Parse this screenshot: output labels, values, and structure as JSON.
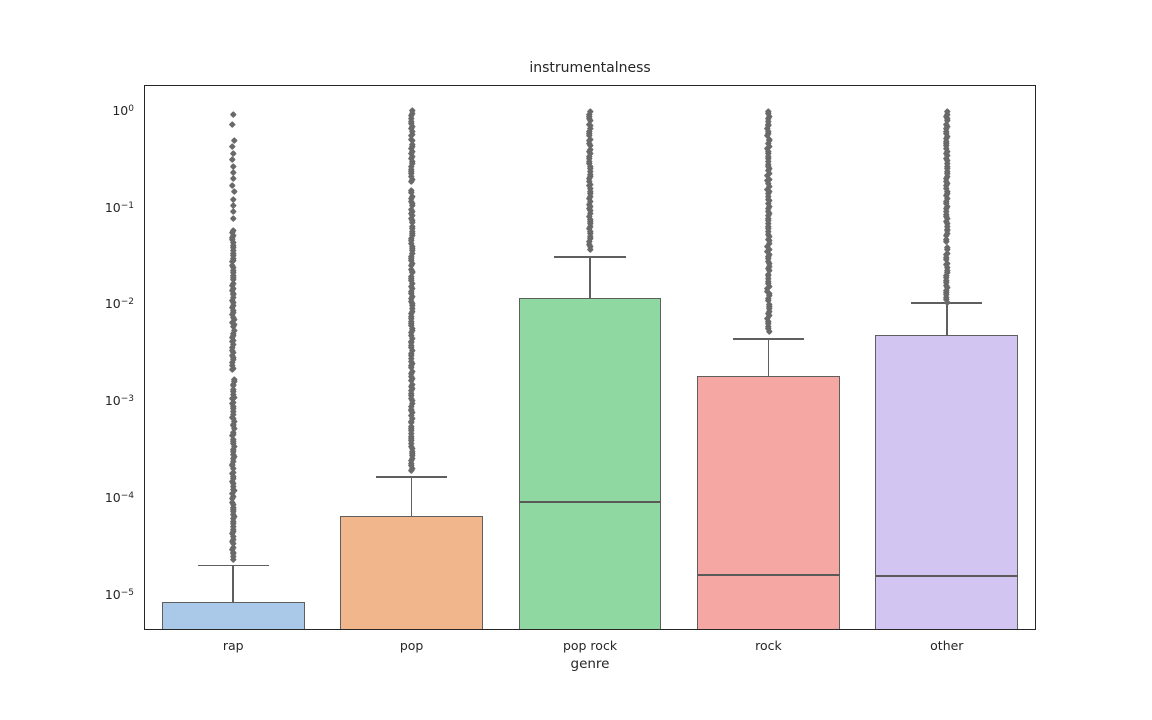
{
  "chart_data": {
    "type": "box",
    "title": "instrumentalness",
    "xlabel": "genre",
    "ylabel": "",
    "yscale": "log",
    "ylim": [
      4.3e-06,
      1.86
    ],
    "ytick_exponents": [
      0,
      -1,
      -2,
      -3,
      -4,
      -5
    ],
    "grid": false,
    "legend": null,
    "categories": [
      "rap",
      "pop",
      "pop rock",
      "rock",
      "other"
    ],
    "colors": {
      "box_edge": "#5f5f5f",
      "whisker": "#5f5f5f",
      "median": "#5a5a5a",
      "flier": "#696969",
      "spine": "#262626",
      "text": "#262626",
      "background": "#ffffff"
    },
    "boxes": [
      {
        "category": "rap",
        "fill": "#aac9e8",
        "q1": 0,
        "median": 0,
        "q3": 8.3e-06,
        "whisker_low": 0,
        "whisker_high": 2e-05,
        "clipped_below": true,
        "outlier_segments": [
          {
            "min": 2.3e-05,
            "max": 0.0017,
            "density": "dense"
          },
          {
            "min": 0.0021,
            "max": 0.059,
            "density": "dense"
          },
          {
            "min": 0.075,
            "max": 0.5,
            "density": "medium"
          },
          {
            "min": 0.64,
            "max": 0.91,
            "density": "sparse"
          }
        ]
      },
      {
        "category": "pop",
        "fill": "#f2b68c",
        "q1": 0,
        "median": 0,
        "q3": 6.5e-05,
        "whisker_low": 0,
        "whisker_high": 0.000165,
        "clipped_below": true,
        "outlier_segments": [
          {
            "min": 0.00019,
            "max": 0.15,
            "density": "dense"
          },
          {
            "min": 0.18,
            "max": 1.0,
            "density": "dense"
          }
        ]
      },
      {
        "category": "pop rock",
        "fill": "#90d8a2",
        "q1": 0,
        "median": 9e-05,
        "q3": 0.0117,
        "whisker_low": 0,
        "whisker_high": 0.031,
        "clipped_below": true,
        "outlier_segments": [
          {
            "min": 0.036,
            "max": 1.0,
            "density": "dense"
          }
        ]
      },
      {
        "category": "rock",
        "fill": "#f5a8a3",
        "q1": 0,
        "median": 1.6e-05,
        "q3": 0.0018,
        "whisker_low": 0,
        "whisker_high": 0.0044,
        "clipped_below": true,
        "outlier_segments": [
          {
            "min": 0.0052,
            "max": 1.0,
            "density": "dense"
          }
        ]
      },
      {
        "category": "other",
        "fill": "#d3c5f2",
        "q1": 0,
        "median": 1.55e-05,
        "q3": 0.0048,
        "whisker_low": 0,
        "whisker_high": 0.0104,
        "clipped_below": true,
        "outlier_segments": [
          {
            "min": 0.0104,
            "max": 0.039,
            "density": "dense"
          },
          {
            "min": 0.045,
            "max": 1.0,
            "density": "dense"
          }
        ]
      }
    ]
  }
}
